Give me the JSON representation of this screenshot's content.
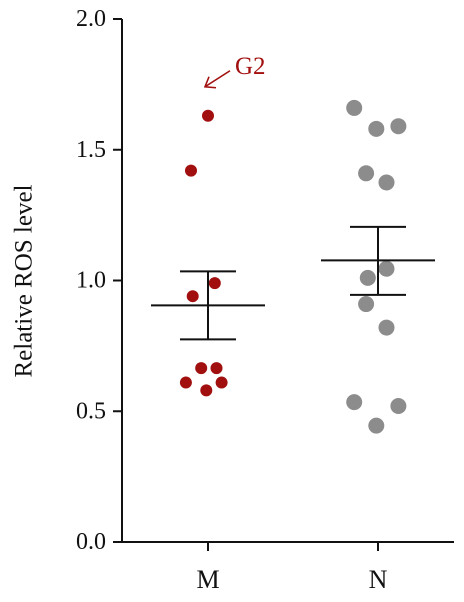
{
  "chart_data": {
    "type": "scatter",
    "title": "",
    "xlabel": "",
    "ylabel": "Relative ROS level",
    "categories": [
      "M",
      "N"
    ],
    "ylim": [
      0.0,
      2.0
    ],
    "yticks": [
      "0.0",
      "0.5",
      "1.0",
      "1.5",
      "2.0"
    ],
    "grid": false,
    "legend": "none",
    "series": [
      {
        "category": "M",
        "color": "#a10f0f",
        "points": [
          {
            "offset": 0,
            "y": 1.63
          },
          {
            "offset": -0.1,
            "y": 1.42
          },
          {
            "offset": -0.09,
            "y": 0.94
          },
          {
            "offset": 0.04,
            "y": 0.99
          },
          {
            "offset": -0.04,
            "y": 0.665
          },
          {
            "offset": 0.05,
            "y": 0.665
          },
          {
            "offset": -0.13,
            "y": 0.61
          },
          {
            "offset": 0.08,
            "y": 0.61
          },
          {
            "offset": -0.01,
            "y": 0.58
          }
        ],
        "mean": 0.905,
        "sem_upper": 1.035,
        "sem_lower": 0.775
      },
      {
        "category": "N",
        "color": "#8c8c8c",
        "points": [
          {
            "offset": -0.14,
            "y": 1.66
          },
          {
            "offset": -0.01,
            "y": 1.58
          },
          {
            "offset": 0.12,
            "y": 1.59
          },
          {
            "offset": -0.07,
            "y": 1.41
          },
          {
            "offset": 0.05,
            "y": 1.375
          },
          {
            "offset": -0.06,
            "y": 1.01
          },
          {
            "offset": 0.05,
            "y": 1.045
          },
          {
            "offset": -0.07,
            "y": 0.91
          },
          {
            "offset": 0.05,
            "y": 0.82
          },
          {
            "offset": -0.14,
            "y": 0.535
          },
          {
            "offset": 0.12,
            "y": 0.52
          },
          {
            "offset": -0.01,
            "y": 0.445
          }
        ],
        "mean": 1.077,
        "sem_upper": 1.205,
        "sem_lower": 0.945
      }
    ],
    "annotations": [
      {
        "text": "G2",
        "color": "#a10f0f",
        "target_category": "M",
        "target_y": 1.63
      }
    ]
  }
}
